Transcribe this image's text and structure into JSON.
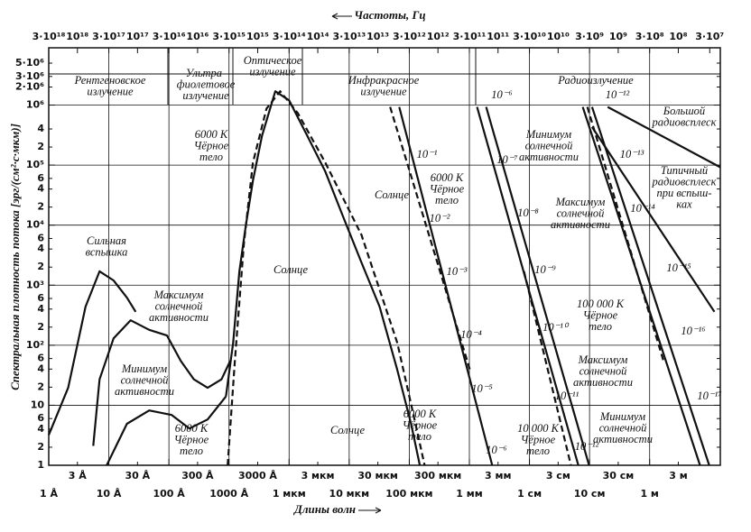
{
  "chart_data": {
    "type": "line",
    "xlog": true,
    "ylog": true,
    "grid": true,
    "x_label": "Длины волн",
    "x2_label": "Частоты, Гц",
    "y_label": "Спектральная плотность потока  [эрг/(см²·с·мкм)]",
    "xlim": [
      1,
      150000000000
    ],
    "x2lim": [
      3000000000000000000,
      20000000
    ],
    "ylim": [
      1,
      9000000
    ],
    "xticks": [
      {
        "value": 1,
        "label": "1 Å"
      },
      {
        "value": 3,
        "label": "3 Å"
      },
      {
        "value": 10,
        "label": "10 Å"
      },
      {
        "value": 30,
        "label": "30 Å"
      },
      {
        "value": 100,
        "label": "100 Å"
      },
      {
        "value": 300,
        "label": "300 Å"
      },
      {
        "value": 1000,
        "label": "1000 Å"
      },
      {
        "value": 3000,
        "label": "3000 Å"
      },
      {
        "value": 10000,
        "label": "1 мкм"
      },
      {
        "value": 30000,
        "label": "3 мкм"
      },
      {
        "value": 100000,
        "label": "10 мкм"
      },
      {
        "value": 300000,
        "label": "30 мкм"
      },
      {
        "value": 1000000,
        "label": "100 мкм"
      },
      {
        "value": 3000000,
        "label": "300 мкм"
      },
      {
        "value": 10000000,
        "label": "1 мм"
      },
      {
        "value": 30000000,
        "label": "3 мм"
      },
      {
        "value": 100000000,
        "label": "1 см"
      },
      {
        "value": 300000000,
        "label": "3 см"
      },
      {
        "value": 1000000000,
        "label": "10 см"
      },
      {
        "value": 3000000000,
        "label": "30 см"
      },
      {
        "value": 10000000000,
        "label": "1 м"
      },
      {
        "value": 30000000000,
        "label": "3 м"
      }
    ],
    "x2ticks": [
      {
        "value": 3000000000000000000,
        "label": "3·10¹⁸"
      },
      {
        "value": 1000000000000000000,
        "label": "10¹⁸"
      },
      {
        "value": 300000000000000000,
        "label": "3·10¹⁷"
      },
      {
        "value": 100000000000000000,
        "label": "10¹⁷"
      },
      {
        "value": 30000000000000000,
        "label": "3·10¹⁶"
      },
      {
        "value": 10000000000000000,
        "label": "10¹⁶"
      },
      {
        "value": 3000000000000000,
        "label": "3·10¹⁵"
      },
      {
        "value": 1000000000000000,
        "label": "10¹⁵"
      },
      {
        "value": 300000000000000,
        "label": "3·10¹⁴"
      },
      {
        "value": 100000000000000,
        "label": "10¹⁴"
      },
      {
        "value": 30000000000000,
        "label": "3·10¹³"
      },
      {
        "value": 10000000000000,
        "label": "10¹³"
      },
      {
        "value": 3000000000000,
        "label": "3·10¹²"
      },
      {
        "value": 1000000000000,
        "label": "10¹²"
      },
      {
        "value": 300000000000,
        "label": "3·10¹¹"
      },
      {
        "value": 100000000000,
        "label": "10¹¹"
      },
      {
        "value": 30000000000,
        "label": "3·10¹⁰"
      },
      {
        "value": 10000000000,
        "label": "10¹⁰"
      },
      {
        "value": 3000000000,
        "label": "3·10⁹"
      },
      {
        "value": 1000000000,
        "label": "10⁹"
      },
      {
        "value": 300000000,
        "label": "3·10⁸"
      },
      {
        "value": 100000000,
        "label": "10⁸"
      },
      {
        "value": 30000000,
        "label": "3·10⁷"
      }
    ],
    "yticks": [
      1,
      2,
      4,
      6,
      10,
      {
        "value": 20,
        "label": "2"
      },
      {
        "value": 40,
        "label": "4"
      },
      {
        "value": 60,
        "label": "6"
      },
      {
        "value": 100,
        "label": "10²"
      },
      {
        "value": 200,
        "label": "2"
      },
      {
        "value": 400,
        "label": "4"
      },
      {
        "value": 600,
        "label": "6"
      },
      {
        "value": 1000,
        "label": "10³"
      },
      {
        "value": 2000,
        "label": "2"
      },
      {
        "value": 4000,
        "label": "4"
      },
      {
        "value": 6000,
        "label": "6"
      },
      {
        "value": 10000,
        "label": "10⁴"
      },
      {
        "value": 20000,
        "label": "2"
      },
      {
        "value": 40000,
        "label": "4"
      },
      {
        "value": 60000,
        "label": "6"
      },
      {
        "value": 100000,
        "label": "10⁵"
      },
      {
        "value": 200000,
        "label": "2"
      },
      {
        "value": 400000,
        "label": "4"
      },
      {
        "value": 1000000,
        "label": "10⁶"
      },
      {
        "value": 2000000,
        "label": "2·10⁶"
      },
      {
        "value": 3000000,
        "label": "3·10⁶"
      },
      {
        "value": 5000000,
        "label": "5·10⁶"
      }
    ],
    "series": [
      {
        "color": "#111",
        "dashed": false,
        "x": [
          1.0,
          2.1,
          4.1,
          7,
          12,
          20,
          28
        ],
        "values": [
          3.2,
          19.5,
          440,
          1700,
          1200,
          620,
          360
        ]
      },
      {
        "color": "#111",
        "dashed": false,
        "x": [
          5.5,
          7,
          12,
          23,
          47,
          93,
          157,
          260,
          440,
          750,
          1050
        ],
        "values": [
          2.1,
          27,
          130,
          260,
          180,
          145,
          55,
          27,
          19.5,
          27,
          55
        ]
      },
      {
        "color": "#111",
        "dashed": false,
        "x": [
          9.2,
          20,
          47,
          111,
          220,
          440,
          890
        ],
        "values": [
          1.0,
          4.9,
          8.2,
          6.9,
          4.1,
          5.8,
          14
        ]
      },
      {
        "color": "#111",
        "dashed": false,
        "x": [
          890,
          1170,
          1490,
          1900,
          2500,
          3540,
          5900,
          10000,
          20000,
          40000,
          79000,
          160000,
          320000,
          630000,
          1070000,
          1500000
        ],
        "values": [
          14,
          110,
          1700,
          9800,
          55000,
          310000,
          1700000,
          1200000,
          310000,
          78000,
          14000,
          2400,
          440,
          39,
          4.9,
          1
        ]
      },
      {
        "color": "#111",
        "dashed": true,
        "x": [
          950,
          1250,
          1770,
          2500,
          4200,
          7100,
          14000,
          40000,
          160000,
          630000,
          1270000,
          1800000
        ],
        "values": [
          1,
          55,
          4900,
          110000,
          870000,
          1700000,
          730000,
          110000,
          6900,
          110,
          4.9,
          1
        ]
      },
      {
        "color": "#111",
        "dashed": false,
        "x": [
          680000,
          24000000
        ],
        "values": [
          930000,
          1
        ]
      },
      {
        "color": "#111",
        "dashed": true,
        "x": [
          480000,
          10200000
        ],
        "values": [
          930000,
          39
        ]
      },
      {
        "color": "#111",
        "dashed": false,
        "x": [
          13400000,
          650000000
        ],
        "values": [
          930000,
          1
        ]
      },
      {
        "color": "#111",
        "dashed": false,
        "x": [
          19000000,
          980000000
        ],
        "values": [
          930000,
          1
        ]
      },
      {
        "color": "#111",
        "dashed": true,
        "x": [
          81000000,
          490000000
        ],
        "values": [
          1700,
          1
        ]
      },
      {
        "color": "#111",
        "dashed": false,
        "x": [
          770000000,
          69000000000
        ],
        "values": [
          930000,
          1
        ]
      },
      {
        "color": "#111",
        "dashed": false,
        "x": [
          1100000000,
          98000000000
        ],
        "values": [
          930000,
          1
        ]
      },
      {
        "color": "#111",
        "dashed": true,
        "x": [
          920000000,
          17000000000
        ],
        "values": [
          930000,
          55
        ]
      },
      {
        "color": "#111",
        "dashed": false,
        "x": [
          2000000000,
          150000000000
        ],
        "values": [
          930000,
          92000
        ]
      },
      {
        "color": "#111",
        "dashed": false,
        "x": [
          1100000000,
          120000000000
        ],
        "values": [
          430000,
          360
        ]
      }
    ],
    "annotations": [
      {
        "lines": [
          "Рентгеновское",
          "излучение"
        ]
      },
      {
        "lines": [
          "Ультра-",
          "фиолетовое",
          "излучение"
        ]
      },
      {
        "lines": [
          "Оптическое",
          "излучение"
        ]
      },
      {
        "lines": [
          "Инфракрасное",
          "излучение"
        ]
      },
      {
        "lines": [
          "Радиоизлучение"
        ]
      },
      {
        "lines": [
          "Сильная",
          "вспышка"
        ]
      },
      {
        "lines": [
          "Максимум",
          "солнечной",
          "активности"
        ]
      },
      {
        "lines": [
          "Минимум",
          "солнечной",
          "активности"
        ]
      },
      {
        "lines": [
          "6000 К",
          "Чёрное",
          "тело"
        ]
      },
      {
        "lines": [
          "6000 К",
          "Чёрное",
          "тело"
        ]
      },
      {
        "lines": [
          "Солнце"
        ]
      },
      {
        "lines": [
          "Солнце"
        ]
      },
      {
        "lines": [
          "6000 К",
          "Чёрное",
          "тело"
        ]
      },
      {
        "lines": [
          "Солнце"
        ]
      },
      {
        "lines": [
          "6000 К",
          "Чёрное",
          "тело"
        ]
      },
      {
        "lines": [
          "Минимум",
          "солнечной",
          "активности"
        ]
      },
      {
        "lines": [
          "Максимум",
          "солнечной",
          "активности"
        ]
      },
      {
        "lines": [
          "Большой",
          "радиовсплеск"
        ]
      },
      {
        "lines": [
          "Типичный",
          "радиовсплеск",
          "при вспыш-",
          "ках"
        ]
      },
      {
        "lines": [
          "100 000 К",
          "Чёрное",
          "тело"
        ]
      },
      {
        "lines": [
          "Максимум",
          "солнечной",
          "активности"
        ]
      },
      {
        "lines": [
          "10 000 К",
          "Чёрное",
          "тело"
        ]
      },
      {
        "lines": [
          "Минимум",
          "солнечной",
          "активности"
        ]
      },
      {
        "lines": [
          "10⁻¹"
        ]
      },
      {
        "lines": [
          "10⁻²"
        ]
      },
      {
        "lines": [
          "10⁻³"
        ]
      },
      {
        "lines": [
          "10⁻⁴"
        ]
      },
      {
        "lines": [
          "10⁻⁵"
        ]
      },
      {
        "lines": [
          "10⁻⁶"
        ]
      },
      {
        "lines": [
          "10⁻⁶"
        ]
      },
      {
        "lines": [
          "10⁻⁷"
        ]
      },
      {
        "lines": [
          "10⁻⁸"
        ]
      },
      {
        "lines": [
          "10⁻⁹"
        ]
      },
      {
        "lines": [
          "10⁻¹⁰"
        ]
      },
      {
        "lines": [
          "10⁻¹¹"
        ]
      },
      {
        "lines": [
          "10⁻¹²"
        ]
      },
      {
        "lines": [
          "10⁻¹²"
        ]
      },
      {
        "lines": [
          "10⁻¹³"
        ]
      },
      {
        "lines": [
          "10⁻¹⁴"
        ]
      },
      {
        "lines": [
          "10⁻¹⁵"
        ]
      },
      {
        "lines": [
          "10⁻¹⁶"
        ]
      },
      {
        "lines": [
          "10⁻¹⁷"
        ]
      }
    ]
  }
}
